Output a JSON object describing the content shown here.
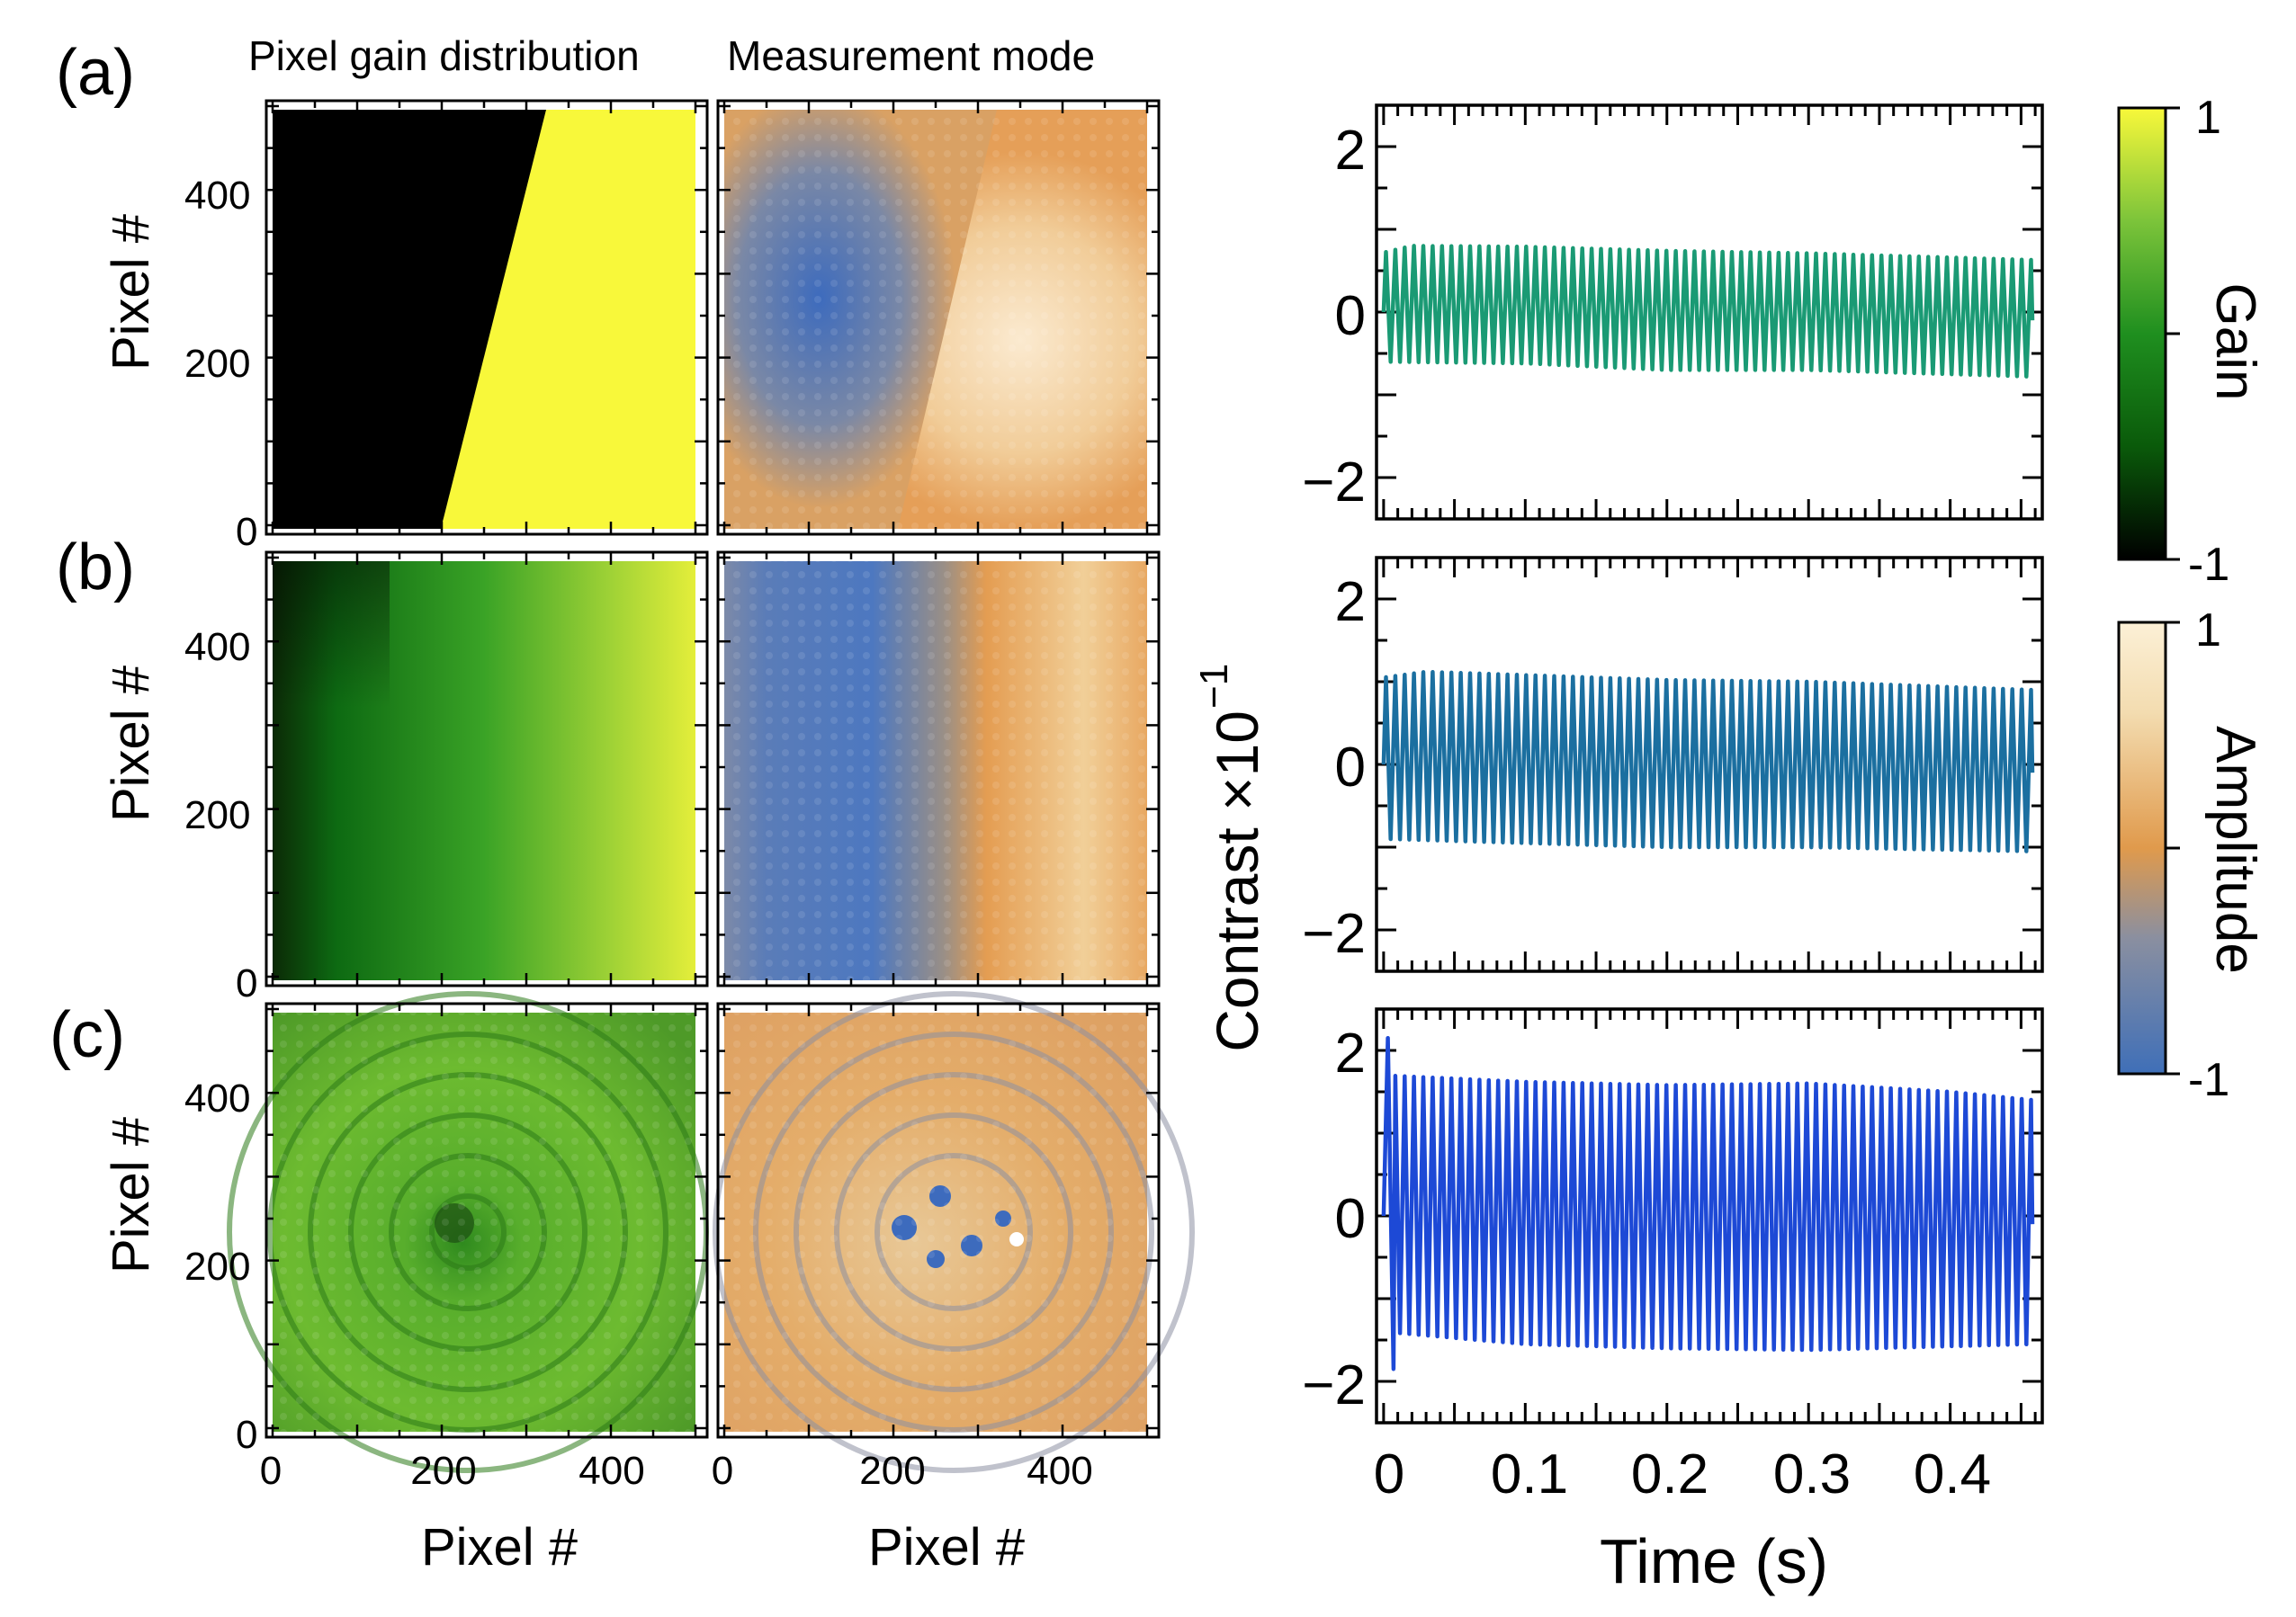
{
  "panel_labels": [
    "(a)",
    "(b)",
    "(c)"
  ],
  "column_titles": [
    "Pixel gain distribution",
    "Measurement mode"
  ],
  "colors": {
    "gain_map": [
      "#000000",
      "#0a5a0a",
      "#1f8f1f",
      "#7cc43a",
      "#f8f83a"
    ],
    "amplitude_map": [
      "#3f6fb8",
      "#8a8fa0",
      "#e09a4c",
      "#f3dcb0",
      "#fcf0d6"
    ],
    "trace_a": "#1a9a74",
    "trace_b": "#1b6fa0",
    "trace_c": "#1d49d6"
  },
  "chart_data": [
    {
      "type": "heatmap",
      "panel": "(a)",
      "map": "gain",
      "pattern": "binary split along slanted line",
      "description_values": {
        "boundary_bottom_x": 200,
        "boundary_top_x": 325
      },
      "ylabel": "Pixel #",
      "xlim": [
        0,
        500
      ],
      "ylim": [
        0,
        500
      ],
      "yticks": [
        "0",
        "200",
        "400"
      ]
    },
    {
      "type": "heatmap",
      "panel": "(a)",
      "map": "amplitude",
      "ylim": [
        0,
        500
      ],
      "xlim": [
        0,
        500
      ]
    },
    {
      "type": "heatmap",
      "panel": "(b)",
      "map": "gain",
      "pattern": "linear horizontal gradient",
      "ylabel": "Pixel #",
      "xlim": [
        0,
        500
      ],
      "ylim": [
        0,
        500
      ],
      "yticks": [
        "0",
        "200",
        "400"
      ]
    },
    {
      "type": "heatmap",
      "panel": "(b)",
      "map": "amplitude",
      "xlim": [
        0,
        500
      ],
      "ylim": [
        0,
        500
      ]
    },
    {
      "type": "heatmap",
      "panel": "(c)",
      "map": "gain",
      "ylabel": "Pixel #",
      "xlabel": "Pixel #",
      "xlim": [
        0,
        500
      ],
      "ylim": [
        0,
        500
      ],
      "xticks": [
        "0",
        "200",
        "400"
      ],
      "yticks": [
        "0",
        "200",
        "400"
      ]
    },
    {
      "type": "heatmap",
      "panel": "(c)",
      "map": "amplitude",
      "xlabel": "Pixel #",
      "xlim": [
        0,
        500
      ],
      "ylim": [
        0,
        500
      ],
      "xticks": [
        "0",
        "200",
        "400"
      ]
    },
    {
      "type": "line",
      "panel": "(a)",
      "series": [
        {
          "period": 0.0066,
          "t_end": 0.458,
          "env_top": [
            [
              0,
              0.72
            ],
            [
              0.02,
              0.8
            ],
            [
              0.1,
              0.79
            ],
            [
              0.2,
              0.74
            ],
            [
              0.3,
              0.71
            ],
            [
              0.458,
              0.63
            ]
          ],
          "env_bot": [
            [
              0,
              -0.6
            ],
            [
              0.1,
              -0.62
            ],
            [
              0.2,
              -0.7
            ],
            [
              0.3,
              -0.7
            ],
            [
              0.458,
              -0.78
            ]
          ]
        }
      ],
      "xlim": [
        -0.005,
        0.465
      ],
      "ylim": [
        -2.5,
        2.5
      ],
      "yticks": [
        "−2",
        "0",
        "2"
      ]
    },
    {
      "type": "line",
      "panel": "(b)",
      "series": [
        {
          "period": 0.0066,
          "t_end": 0.458,
          "env_top": [
            [
              0,
              1.05
            ],
            [
              0.03,
              1.12
            ],
            [
              0.1,
              1.08
            ],
            [
              0.2,
              1.02
            ],
            [
              0.3,
              1.0
            ],
            [
              0.458,
              0.9
            ]
          ],
          "env_bot": [
            [
              0,
              -0.9
            ],
            [
              0.1,
              -0.95
            ],
            [
              0.2,
              -1.0
            ],
            [
              0.3,
              -1.0
            ],
            [
              0.458,
              -1.05
            ]
          ]
        }
      ],
      "xlim": [
        -0.005,
        0.465
      ],
      "ylim": [
        -2.5,
        2.5
      ],
      "yticks": [
        "−2",
        "0",
        "2"
      ]
    },
    {
      "type": "line",
      "panel": "(c)",
      "series": [
        {
          "period": 0.0066,
          "t_end": 0.458,
          "spike": [
            [
              0.003,
              2.15
            ],
            [
              0.007,
              -1.85
            ]
          ],
          "env_top": [
            [
              0,
              1.7
            ],
            [
              0.1,
              1.62
            ],
            [
              0.2,
              1.58
            ],
            [
              0.3,
              1.6
            ],
            [
              0.4,
              1.5
            ],
            [
              0.458,
              1.4
            ]
          ],
          "env_bot": [
            [
              0,
              -1.4
            ],
            [
              0.1,
              -1.55
            ],
            [
              0.2,
              -1.6
            ],
            [
              0.3,
              -1.62
            ],
            [
              0.458,
              -1.55
            ]
          ]
        }
      ],
      "xlabel": "Time (s)",
      "xlim": [
        -0.005,
        0.465
      ],
      "ylim": [
        -2.5,
        2.5
      ],
      "xticks": [
        "0",
        "0.1",
        "0.2",
        "0.3",
        "0.4"
      ],
      "yticks": [
        "−2",
        "0",
        "2"
      ]
    }
  ],
  "shared_labels": {
    "xlabel_map": "Pixel #",
    "ylabel_map": "Pixel #",
    "ylabel_trace": "Contrast  ×10",
    "ylabel_trace_exp": "−1",
    "xlabel_trace": "Time (s)"
  },
  "colorbars": [
    {
      "label": "Gain",
      "max": "1",
      "min": "-1"
    },
    {
      "label": "Amplitude",
      "max": "1",
      "min": "-1"
    }
  ]
}
